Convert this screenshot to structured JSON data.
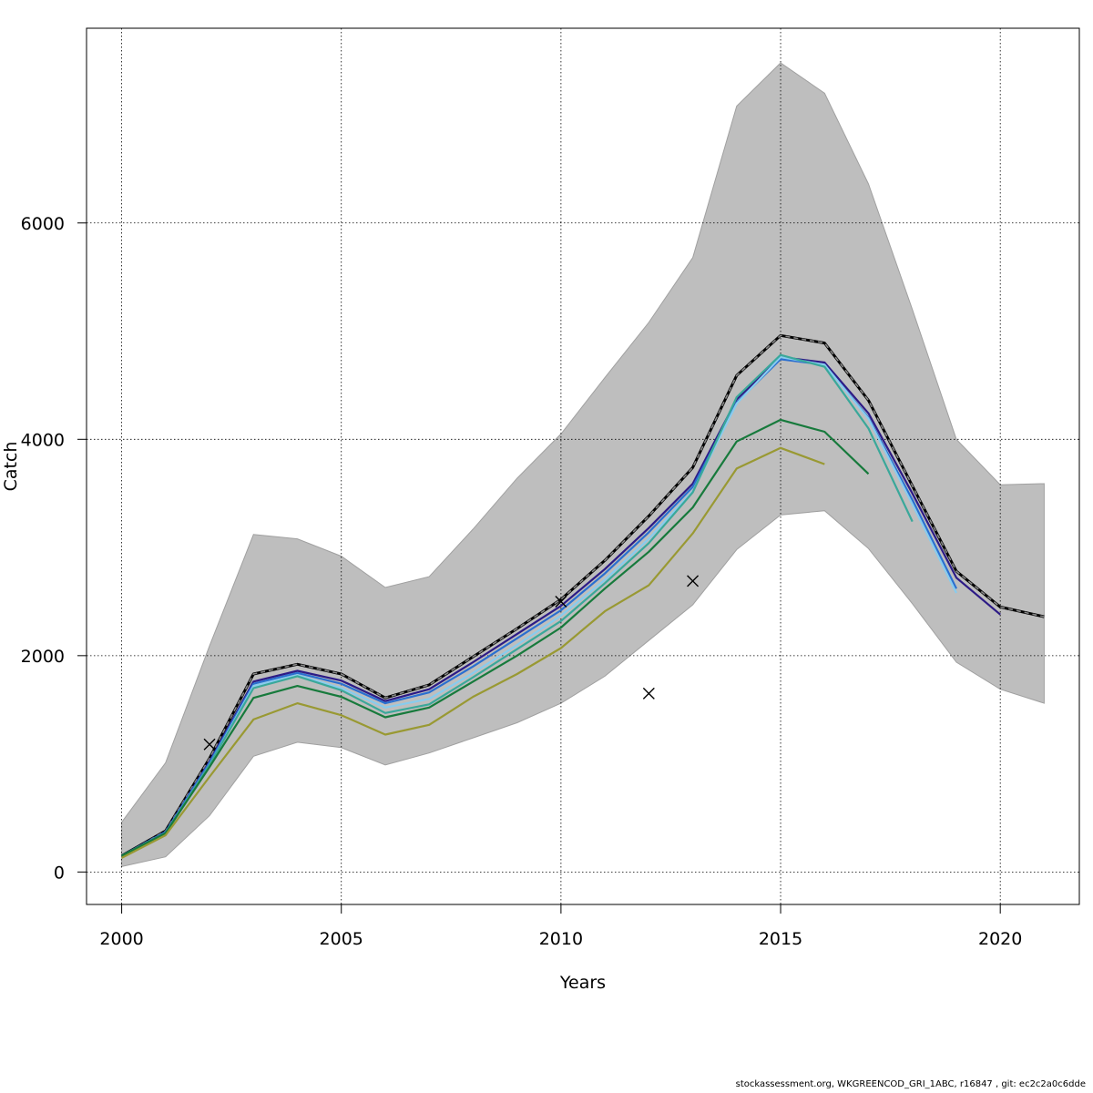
{
  "chart_data": {
    "type": "line",
    "xlabel": "Years",
    "ylabel": "Catch",
    "xlim": [
      1999.2,
      2021.8
    ],
    "ylim": [
      -300,
      7800
    ],
    "xticks": [
      2000,
      2005,
      2010,
      2015,
      2020
    ],
    "yticks": [
      0,
      2000,
      4000,
      6000
    ],
    "grid": true,
    "band": {
      "name": "confidence interval",
      "color": "#bebebe",
      "x": [
        2000,
        2001,
        2002,
        2003,
        2004,
        2005,
        2006,
        2007,
        2008,
        2009,
        2010,
        2011,
        2012,
        2013,
        2014,
        2015,
        2016,
        2017,
        2018,
        2019,
        2020,
        2021
      ],
      "upper": [
        460,
        1010,
        2090,
        3120,
        3080,
        2920,
        2630,
        2730,
        3170,
        3640,
        4050,
        4570,
        5080,
        5680,
        7080,
        7480,
        7200,
        6360,
        5200,
        4000,
        3580,
        3590
      ],
      "lower": [
        50,
        140,
        520,
        1070,
        1200,
        1150,
        990,
        1100,
        1240,
        1380,
        1560,
        1810,
        2140,
        2470,
        2980,
        3300,
        3340,
        2990,
        2480,
        1940,
        1690,
        1560
      ]
    },
    "series": [
      {
        "name": "black dashed",
        "color": "#222222",
        "dashed": true,
        "x": [
          2000,
          2001,
          2002,
          2003,
          2004,
          2005,
          2006,
          2007,
          2008,
          2009,
          2010,
          2011,
          2012,
          2013,
          2014,
          2015,
          2016,
          2017,
          2018,
          2019,
          2020,
          2021
        ],
        "values": [
          150,
          380,
          1050,
          1830,
          1920,
          1830,
          1610,
          1730,
          1990,
          2250,
          2520,
          2880,
          3290,
          3740,
          4590,
          4960,
          4890,
          4360,
          3570,
          2780,
          2450,
          2360
        ]
      },
      {
        "name": "dark purple",
        "color": "#2d1b86",
        "x": [
          2000,
          2001,
          2002,
          2003,
          2004,
          2005,
          2006,
          2007,
          2008,
          2009,
          2010,
          2011,
          2012,
          2013,
          2014,
          2015,
          2016,
          2017,
          2018,
          2019,
          2020
        ],
        "values": [
          150,
          370,
          1020,
          1760,
          1860,
          1770,
          1580,
          1690,
          1940,
          2200,
          2460,
          2800,
          3180,
          3590,
          4370,
          4760,
          4710,
          4240,
          3500,
          2720,
          2380
        ]
      },
      {
        "name": "blue",
        "color": "#2a6fd0",
        "x": [
          2000,
          2001,
          2002,
          2003,
          2004,
          2005,
          2006,
          2007,
          2008,
          2009,
          2010,
          2011,
          2012,
          2013,
          2014,
          2015,
          2016,
          2017,
          2018,
          2019
        ],
        "values": [
          150,
          370,
          1010,
          1740,
          1840,
          1740,
          1560,
          1660,
          1900,
          2160,
          2420,
          2760,
          3140,
          3560,
          4340,
          4740,
          4690,
          4200,
          3440,
          2620
        ]
      },
      {
        "name": "light blue",
        "color": "#88ccee",
        "x": [
          2000,
          2001,
          2002,
          2003,
          2004,
          2005,
          2006,
          2007,
          2008,
          2009,
          2010,
          2011,
          2012,
          2013,
          2014,
          2015,
          2016,
          2017,
          2018,
          2019
        ],
        "values": [
          150,
          360,
          990,
          1720,
          1820,
          1700,
          1520,
          1600,
          1840,
          2100,
          2370,
          2700,
          3080,
          3520,
          4330,
          4760,
          4690,
          4190,
          3400,
          2580
        ]
      },
      {
        "name": "teal",
        "color": "#3aa89a",
        "x": [
          2000,
          2001,
          2002,
          2003,
          2004,
          2005,
          2006,
          2007,
          2008,
          2009,
          2010,
          2011,
          2012,
          2013,
          2014,
          2015,
          2016,
          2017,
          2018
        ],
        "values": [
          150,
          360,
          990,
          1700,
          1810,
          1680,
          1470,
          1550,
          1800,
          2060,
          2320,
          2670,
          3040,
          3510,
          4390,
          4780,
          4670,
          4100,
          3240
        ]
      },
      {
        "name": "green",
        "color": "#177a3c",
        "x": [
          2000,
          2001,
          2002,
          2003,
          2004,
          2005,
          2006,
          2007,
          2008,
          2009,
          2010,
          2011,
          2012,
          2013,
          2014,
          2015,
          2016,
          2017
        ],
        "values": [
          150,
          360,
          970,
          1610,
          1720,
          1620,
          1430,
          1520,
          1760,
          2000,
          2260,
          2620,
          2960,
          3370,
          3980,
          4180,
          4070,
          3680
        ]
      },
      {
        "name": "olive",
        "color": "#999933",
        "x": [
          2000,
          2001,
          2002,
          2003,
          2004,
          2005,
          2006,
          2007,
          2008,
          2009,
          2010,
          2011,
          2012,
          2013,
          2014,
          2015,
          2016
        ],
        "values": [
          130,
          340,
          880,
          1410,
          1560,
          1450,
          1270,
          1360,
          1620,
          1830,
          2070,
          2410,
          2650,
          3130,
          3730,
          3920,
          3770
        ]
      }
    ],
    "observations": {
      "name": "observed catch",
      "marker": "x",
      "x": [
        2002,
        2010,
        2012,
        2013
      ],
      "values": [
        1180,
        2500,
        1650,
        2690
      ]
    }
  },
  "footer": "stockassessment.org, WKGREENCOD_GRI_1ABC, r16847 , git: ec2c2a0c6dde"
}
